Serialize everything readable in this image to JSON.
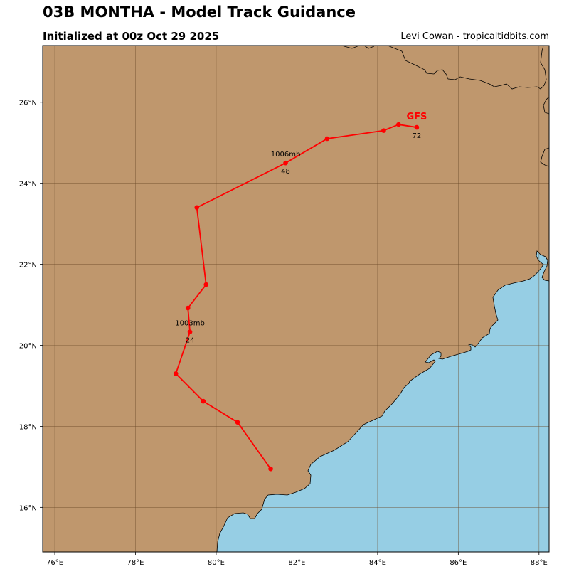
{
  "title": "03B MONTHA - Model Track Guidance",
  "initialized": "Initialized at 00z Oct 29 2025",
  "credit": "Levi Cowan - tropicaltidbits.com",
  "colors": {
    "land": "#bf976d",
    "ocean": "#96cee4",
    "coastline": "#000000",
    "grid": "#6b4a2a",
    "track": "#ff0000"
  },
  "map": {
    "lon_range": [
      75.7,
      88.25
    ],
    "lat_range": [
      14.9,
      27.4
    ],
    "x_ticks": [
      {
        "lon": 76,
        "label": "76°E"
      },
      {
        "lon": 78,
        "label": "78°E"
      },
      {
        "lon": 80,
        "label": "80°E"
      },
      {
        "lon": 82,
        "label": "82°E"
      },
      {
        "lon": 84,
        "label": "84°E"
      },
      {
        "lon": 86,
        "label": "86°E"
      },
      {
        "lon": 88,
        "label": "88°E"
      }
    ],
    "y_ticks": [
      {
        "lat": 16,
        "label": "16°N"
      },
      {
        "lat": 18,
        "label": "18°N"
      },
      {
        "lat": 20,
        "label": "20°N"
      },
      {
        "lat": 22,
        "label": "22°N"
      },
      {
        "lat": 24,
        "label": "24°N"
      },
      {
        "lat": 26,
        "label": "26°N"
      }
    ],
    "grid": true
  },
  "track": {
    "model": "GFS",
    "points": [
      {
        "lon": 81.35,
        "lat": 16.95
      },
      {
        "lon": 80.53,
        "lat": 18.1
      },
      {
        "lon": 79.68,
        "lat": 18.62
      },
      {
        "lon": 79.0,
        "lat": 19.3
      },
      {
        "lon": 79.35,
        "lat": 20.33,
        "hour": "24",
        "pressure": "1003mb"
      },
      {
        "lon": 79.3,
        "lat": 20.92
      },
      {
        "lon": 79.75,
        "lat": 21.5
      },
      {
        "lon": 79.52,
        "lat": 23.4
      },
      {
        "lon": 81.72,
        "lat": 24.5,
        "hour": "48",
        "pressure": "1006mb"
      },
      {
        "lon": 82.75,
        "lat": 25.1
      },
      {
        "lon": 84.15,
        "lat": 25.3
      },
      {
        "lon": 84.52,
        "lat": 25.45
      },
      {
        "lon": 84.97,
        "lat": 25.38,
        "hour": "72"
      }
    ]
  }
}
